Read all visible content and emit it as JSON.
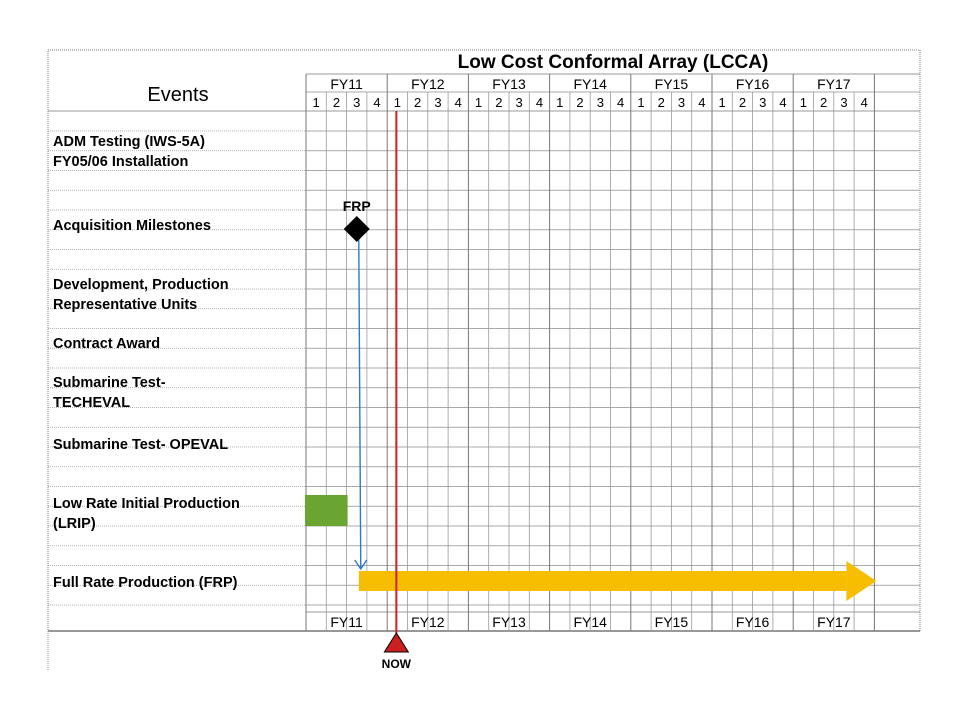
{
  "chart_data": {
    "type": "gantt",
    "title": "Low Cost Conformal Array (LCCA)",
    "events_header": "Events",
    "fiscal_years": [
      "FY11",
      "FY12",
      "FY13",
      "FY14",
      "FY15",
      "FY16",
      "FY17"
    ],
    "quarters": [
      "1",
      "2",
      "3",
      "4"
    ],
    "events": [
      {
        "lines": [
          "ADM Testing (IWS-5A)",
          "FY05/06 Installation"
        ]
      },
      {
        "lines": [
          "Acquisition Milestones"
        ]
      },
      {
        "lines": [
          "Development, Production",
          "Representative Units"
        ]
      },
      {
        "lines": [
          "Contract Award"
        ]
      },
      {
        "lines": [
          "Submarine Test-",
          "TECHEVAL"
        ]
      },
      {
        "lines": [
          "Submarine Test- OPEVAL"
        ]
      },
      {
        "lines": [
          "Low Rate Initial Production",
          "(LRIP)"
        ]
      },
      {
        "lines": [
          "Full Rate Production (FRP)"
        ]
      }
    ],
    "milestone": {
      "label": "FRP",
      "event_index": 1,
      "fy": "FY11",
      "quarter": 3.5
    },
    "milestone_arrow": {
      "from_event": 1,
      "to_event": 7
    },
    "bars": [
      {
        "event_index": 6,
        "start_fy": "FY11",
        "start_q": 1,
        "end_fy": "FY11",
        "end_q": 2,
        "color": "#6aa531"
      },
      {
        "event_index": 7,
        "start_fy": "FY11",
        "start_q": 3.5,
        "end_fy": "FY17",
        "end_q": 4,
        "color": "#f7be00",
        "arrow": true
      }
    ],
    "now": {
      "label": "NOW",
      "fy": "FY12",
      "quarter": 1.5,
      "color": "#cc1f1f"
    }
  }
}
